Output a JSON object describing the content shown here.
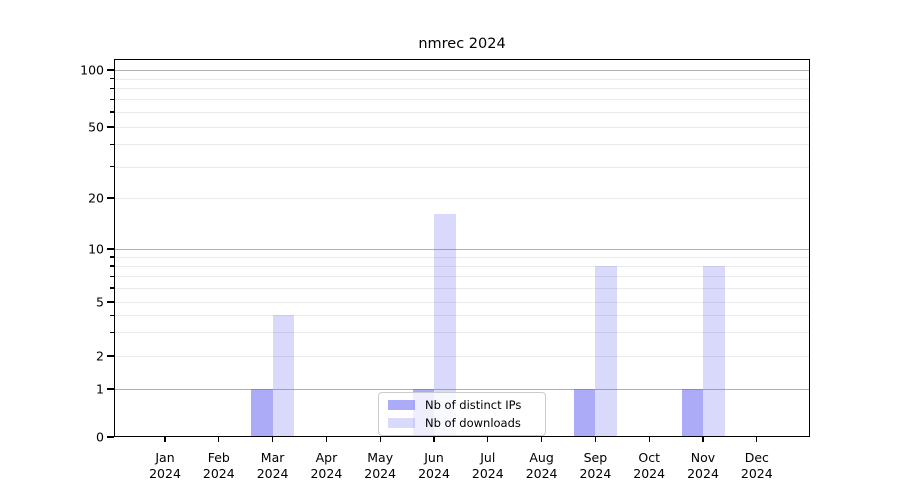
{
  "title": "nmrec 2024",
  "chart_data": {
    "type": "bar",
    "title": "nmrec 2024",
    "categories": [
      "Jan 2024",
      "Feb 2024",
      "Mar 2024",
      "Apr 2024",
      "May 2024",
      "Jun 2024",
      "Jul 2024",
      "Aug 2024",
      "Sep 2024",
      "Oct 2024",
      "Nov 2024",
      "Dec 2024"
    ],
    "series": [
      {
        "name": "Nb of distinct IPs",
        "fill": "rgba(102,102,242,0.55)",
        "values": [
          0,
          0,
          1,
          0,
          0,
          1,
          0,
          0,
          1,
          0,
          1,
          0
        ]
      },
      {
        "name": "Nb of downloads",
        "fill": "rgba(102,102,242,0.25)",
        "values": [
          0,
          0,
          4,
          0,
          0,
          16,
          0,
          0,
          8,
          0,
          8,
          0
        ]
      }
    ],
    "yscale": "log-like (linear below 1)",
    "yticks": [
      0,
      1,
      2,
      5,
      10,
      20,
      50,
      100
    ],
    "ylim": [
      0,
      115
    ],
    "grid": true,
    "legend_position": "lower center",
    "colors": {
      "bar_distinct_ips": "#acabf7",
      "bar_downloads": "#dcdbfa",
      "grid_major": "#b0b0b0",
      "grid_minor": "#eaeaea"
    }
  }
}
